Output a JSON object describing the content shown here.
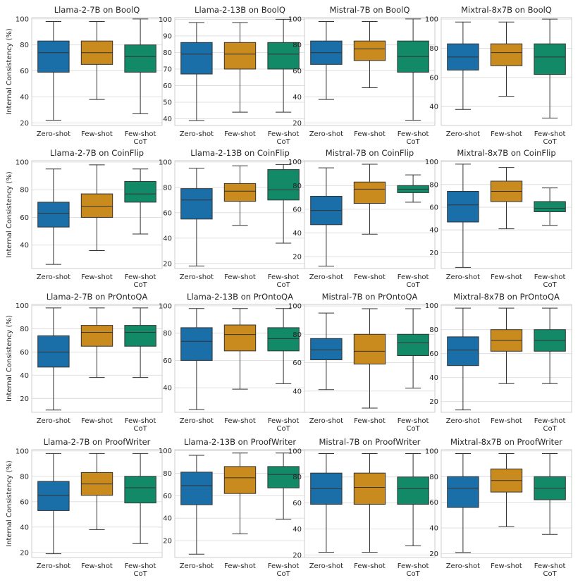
{
  "figure": {
    "ylabel": "Internal Consistency (%)",
    "categories": [
      "Zero-shot",
      "Few-shot",
      "Few-shot CoT"
    ],
    "colors": [
      "#1a6fa8",
      "#c98a1e",
      "#128a68"
    ]
  },
  "chart_data": [
    {
      "type": "box",
      "title": "Llama-2-7B on BoolQ",
      "ylim": [
        18,
        101
      ],
      "yticks": [
        20,
        40,
        60,
        80,
        100
      ],
      "boxes": [
        {
          "category": "Zero-shot",
          "whislo": 22,
          "q1": 59,
          "med": 74,
          "q3": 83,
          "whishi": 98
        },
        {
          "category": "Few-shot",
          "whislo": 38,
          "q1": 65,
          "med": 74,
          "q3": 83,
          "whishi": 98
        },
        {
          "category": "Few-shot CoT",
          "whislo": 27,
          "q1": 59,
          "med": 71,
          "q3": 80,
          "whishi": 100
        }
      ]
    },
    {
      "type": "box",
      "title": "Llama-2-13B on BoolQ",
      "ylim": [
        36,
        101
      ],
      "yticks": [
        40,
        50,
        60,
        70,
        80,
        90,
        100
      ],
      "boxes": [
        {
          "category": "Zero-shot",
          "whislo": 39,
          "q1": 67,
          "med": 79,
          "q3": 86,
          "whishi": 98
        },
        {
          "category": "Few-shot",
          "whislo": 44,
          "q1": 70,
          "med": 79,
          "q3": 86,
          "whishi": 98
        },
        {
          "category": "Few-shot CoT",
          "whislo": 44,
          "q1": 70,
          "med": 79,
          "q3": 86,
          "whishi": 100
        }
      ]
    },
    {
      "type": "box",
      "title": "Mistral-7B on BoolQ",
      "ylim": [
        18,
        101
      ],
      "yticks": [
        20,
        40,
        60,
        80,
        100
      ],
      "boxes": [
        {
          "category": "Zero-shot",
          "whislo": 38,
          "q1": 65,
          "med": 74,
          "q3": 83,
          "whishi": 98
        },
        {
          "category": "Few-shot",
          "whislo": 47,
          "q1": 68,
          "med": 77,
          "q3": 83,
          "whishi": 98
        },
        {
          "category": "Few-shot CoT",
          "whislo": 22,
          "q1": 59,
          "med": 71,
          "q3": 83,
          "whishi": 100
        }
      ]
    },
    {
      "type": "box",
      "title": "Mixtral-8x7B on BoolQ",
      "ylim": [
        27,
        101
      ],
      "yticks": [
        40,
        60,
        80,
        100
      ],
      "boxes": [
        {
          "category": "Zero-shot",
          "whislo": 38,
          "q1": 65,
          "med": 74,
          "q3": 83,
          "whishi": 98
        },
        {
          "category": "Few-shot",
          "whislo": 47,
          "q1": 68,
          "med": 77,
          "q3": 83,
          "whishi": 98
        },
        {
          "category": "Few-shot CoT",
          "whislo": 32,
          "q1": 62,
          "med": 74,
          "q3": 83,
          "whishi": 100
        }
      ]
    },
    {
      "type": "box",
      "title": "Llama-2-7B on CoinFlip",
      "ylim": [
        23,
        101
      ],
      "yticks": [
        40,
        60,
        80,
        100
      ],
      "boxes": [
        {
          "category": "Zero-shot",
          "whislo": 26,
          "q1": 53,
          "med": 63,
          "q3": 71,
          "whishi": 95
        },
        {
          "category": "Few-shot",
          "whislo": 36,
          "q1": 60,
          "med": 68,
          "q3": 77,
          "whishi": 98
        },
        {
          "category": "Few-shot CoT",
          "whislo": 48,
          "q1": 71,
          "med": 77,
          "q3": 86,
          "whishi": 95
        }
      ]
    },
    {
      "type": "box",
      "title": "Llama-2-13B on CoinFlip",
      "ylim": [
        16,
        101
      ],
      "yticks": [
        20,
        40,
        60,
        80,
        100
      ],
      "boxes": [
        {
          "category": "Zero-shot",
          "whislo": 18,
          "q1": 55,
          "med": 70,
          "q3": 79,
          "whishi": 95
        },
        {
          "category": "Few-shot",
          "whislo": 50,
          "q1": 69,
          "med": 77,
          "q3": 83,
          "whishi": 97
        },
        {
          "category": "Few-shot CoT",
          "whislo": 36,
          "q1": 70,
          "med": 78,
          "q3": 94,
          "whishi": 98
        }
      ]
    },
    {
      "type": "box",
      "title": "Mistral-7B on CoinFlip",
      "ylim": [
        10,
        101
      ],
      "yticks": [
        20,
        40,
        60,
        80,
        100
      ],
      "boxes": [
        {
          "category": "Zero-shot",
          "whislo": 12,
          "q1": 47,
          "med": 59,
          "q3": 71,
          "whishi": 95
        },
        {
          "category": "Few-shot",
          "whislo": 39,
          "q1": 65,
          "med": 77,
          "q3": 83,
          "whishi": 98
        },
        {
          "category": "Few-shot CoT",
          "whislo": 66,
          "q1": 74,
          "med": 77,
          "q3": 80,
          "whishi": 89
        }
      ]
    },
    {
      "type": "box",
      "title": "Mixtral-8x7B on CoinFlip",
      "ylim": [
        6,
        101
      ],
      "yticks": [
        20,
        40,
        60,
        80,
        100
      ],
      "boxes": [
        {
          "category": "Zero-shot",
          "whislo": 7,
          "q1": 47,
          "med": 62,
          "q3": 74,
          "whishi": 98
        },
        {
          "category": "Few-shot",
          "whislo": 41,
          "q1": 65,
          "med": 74,
          "q3": 83,
          "whishi": 95
        },
        {
          "category": "Few-shot CoT",
          "whislo": 44,
          "q1": 56,
          "med": 59,
          "q3": 65,
          "whishi": 77
        }
      ]
    },
    {
      "type": "box",
      "title": "Llama-2-7B on PrOntoQA",
      "ylim": [
        8,
        101
      ],
      "yticks": [
        20,
        40,
        60,
        80,
        100
      ],
      "boxes": [
        {
          "category": "Zero-shot",
          "whislo": 10,
          "q1": 47,
          "med": 60,
          "q3": 74,
          "whishi": 98
        },
        {
          "category": "Few-shot",
          "whislo": 38,
          "q1": 65,
          "med": 77,
          "q3": 83,
          "whishi": 98
        },
        {
          "category": "Few-shot CoT",
          "whislo": 38,
          "q1": 65,
          "med": 77,
          "q3": 83,
          "whishi": 98
        }
      ]
    },
    {
      "type": "box",
      "title": "Llama-2-13B on PrOntoQA",
      "ylim": [
        22,
        101
      ],
      "yticks": [
        40,
        60,
        80,
        100
      ],
      "boxes": [
        {
          "category": "Zero-shot",
          "whislo": 24,
          "q1": 60,
          "med": 74,
          "q3": 84,
          "whishi": 98
        },
        {
          "category": "Few-shot",
          "whislo": 39,
          "q1": 67,
          "med": 79,
          "q3": 86,
          "whishi": 98
        },
        {
          "category": "Few-shot CoT",
          "whislo": 43,
          "q1": 67,
          "med": 76,
          "q3": 84,
          "whishi": 98
        }
      ]
    },
    {
      "type": "box",
      "title": "Mistral-7B on PrOntoQA",
      "ylim": [
        25,
        101
      ],
      "yticks": [
        40,
        60,
        80,
        100
      ],
      "boxes": [
        {
          "category": "Zero-shot",
          "whislo": 41,
          "q1": 62,
          "med": 69,
          "q3": 77,
          "whishi": 95
        },
        {
          "category": "Few-shot",
          "whislo": 28,
          "q1": 59,
          "med": 68,
          "q3": 80,
          "whishi": 98
        },
        {
          "category": "Few-shot CoT",
          "whislo": 42,
          "q1": 65,
          "med": 74,
          "q3": 80,
          "whishi": 98
        }
      ]
    },
    {
      "type": "box",
      "title": "Mixtral-8x7B on PrOntoQA",
      "ylim": [
        11,
        101
      ],
      "yticks": [
        20,
        40,
        60,
        80,
        100
      ],
      "boxes": [
        {
          "category": "Zero-shot",
          "whislo": 13,
          "q1": 50,
          "med": 63,
          "q3": 74,
          "whishi": 98
        },
        {
          "category": "Few-shot",
          "whislo": 35,
          "q1": 62,
          "med": 71,
          "q3": 80,
          "whishi": 98
        },
        {
          "category": "Few-shot CoT",
          "whislo": 35,
          "q1": 62,
          "med": 71,
          "q3": 80,
          "whishi": 98
        }
      ]
    },
    {
      "type": "box",
      "title": "Llama-2-7B on ProofWriter",
      "ylim": [
        16,
        101
      ],
      "yticks": [
        20,
        40,
        60,
        80,
        100
      ],
      "boxes": [
        {
          "category": "Zero-shot",
          "whislo": 19,
          "q1": 53,
          "med": 65,
          "q3": 76,
          "whishi": 98
        },
        {
          "category": "Few-shot",
          "whislo": 38,
          "q1": 65,
          "med": 74,
          "q3": 83,
          "whishi": 98
        },
        {
          "category": "Few-shot CoT",
          "whislo": 27,
          "q1": 59,
          "med": 71,
          "q3": 80,
          "whishi": 98
        }
      ]
    },
    {
      "type": "box",
      "title": "Llama-2-13B on ProofWriter",
      "ylim": [
        5,
        101
      ],
      "yticks": [
        20,
        40,
        60,
        80,
        100
      ],
      "boxes": [
        {
          "category": "Zero-shot",
          "whislo": 8,
          "q1": 52,
          "med": 69,
          "q3": 81,
          "whishi": 96
        },
        {
          "category": "Few-shot",
          "whislo": 26,
          "q1": 62,
          "med": 76,
          "q3": 86,
          "whishi": 98
        },
        {
          "category": "Few-shot CoT",
          "whislo": 39,
          "q1": 67,
          "med": 79,
          "q3": 86,
          "whishi": 98
        }
      ]
    },
    {
      "type": "box",
      "title": "Mistral-7B on ProofWriter",
      "ylim": [
        18,
        101
      ],
      "yticks": [
        20,
        40,
        60,
        80,
        100
      ],
      "boxes": [
        {
          "category": "Zero-shot",
          "whislo": 22,
          "q1": 59,
          "med": 71,
          "q3": 83,
          "whishi": 98
        },
        {
          "category": "Few-shot",
          "whislo": 22,
          "q1": 59,
          "med": 72,
          "q3": 83,
          "whishi": 98
        },
        {
          "category": "Few-shot CoT",
          "whislo": 27,
          "q1": 59,
          "med": 71,
          "q3": 80,
          "whishi": 98
        }
      ]
    },
    {
      "type": "box",
      "title": "Mixtral-8x7B on ProofWriter",
      "ylim": [
        17,
        101
      ],
      "yticks": [
        20,
        40,
        60,
        80,
        100
      ],
      "boxes": [
        {
          "category": "Zero-shot",
          "whislo": 21,
          "q1": 56,
          "med": 71,
          "q3": 80,
          "whishi": 98
        },
        {
          "category": "Few-shot",
          "whislo": 41,
          "q1": 68,
          "med": 77,
          "q3": 86,
          "whishi": 98
        },
        {
          "category": "Few-shot CoT",
          "whislo": 35,
          "q1": 62,
          "med": 71,
          "q3": 80,
          "whishi": 98
        }
      ]
    }
  ]
}
